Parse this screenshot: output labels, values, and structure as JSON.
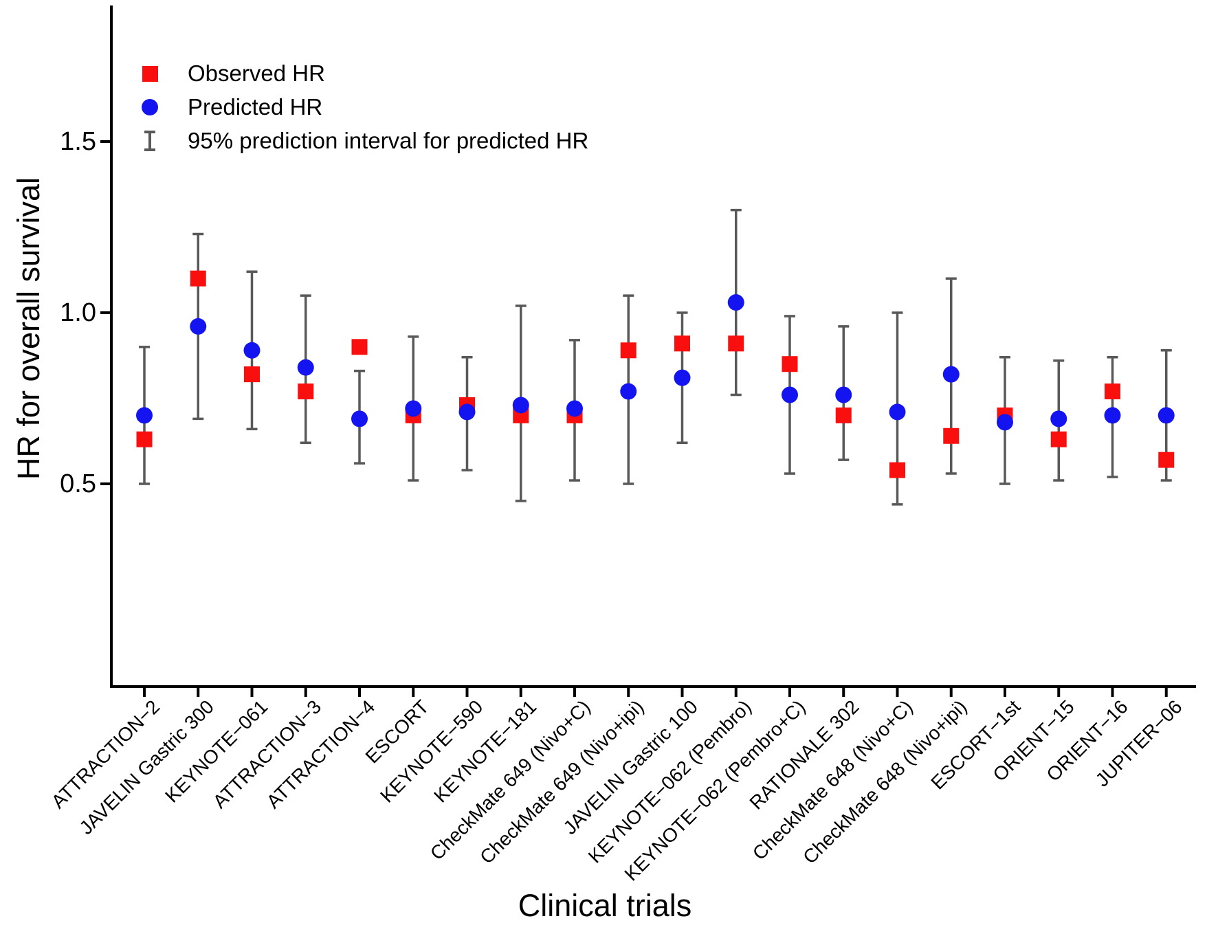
{
  "figure": {
    "y_axis_title": "HR for overall survival",
    "x_axis_title": "Clinical trials"
  },
  "legend": {
    "observed_label": "Observed HR",
    "predicted_label": "Predicted HR",
    "interval_label": "95% prediction interval for predicted HR"
  },
  "colors": {
    "observed": "#fa0f0f",
    "predicted": "#1414f0",
    "interval": "#595959",
    "axis": "#000000"
  },
  "chart_data": {
    "type": "scatter",
    "title": "",
    "xlabel": "Clinical trials",
    "ylabel": "HR for overall survival",
    "ylim": [
      -0.09,
      1.9
    ],
    "y_ticks": [
      0.5,
      1.0,
      1.5
    ],
    "grid": false,
    "legend_position": "top-left",
    "categories": [
      "ATTRACTION−2",
      "JAVELIN Gastric 300",
      "KEYNOTE−061",
      "ATTRACTION−3",
      "ATTRACTION−4",
      "ESCORT",
      "KEYNOTE−590",
      "KEYNOTE−181",
      "CheckMate 649 (Nivo+C)",
      "CheckMate 649 (Nivo+ipi)",
      "JAVELIN Gastric 100",
      "KEYNOTE−062 (Pembro)",
      "KEYNOTE−062 (Pembro+C)",
      "RATIONALE 302",
      "CheckMate 648 (Nivo+C)",
      "CheckMate 648 (Nivo+ipi)",
      "ESCORT−1st",
      "ORIENT−15",
      "ORIENT−16",
      "JUPITER−06"
    ],
    "series": [
      {
        "name": "Observed HR",
        "marker": "square",
        "values": [
          0.63,
          1.1,
          0.82,
          0.77,
          0.9,
          0.7,
          0.73,
          0.7,
          0.7,
          0.89,
          0.91,
          0.91,
          0.85,
          0.7,
          0.54,
          0.64,
          0.7,
          0.63,
          0.77,
          0.57
        ]
      },
      {
        "name": "Predicted HR",
        "marker": "circle",
        "values": [
          0.7,
          0.96,
          0.89,
          0.84,
          0.69,
          0.72,
          0.71,
          0.73,
          0.72,
          0.77,
          0.81,
          1.03,
          0.76,
          0.76,
          0.71,
          0.82,
          0.68,
          0.69,
          0.7,
          0.7
        ]
      },
      {
        "name": "95% prediction interval for predicted HR",
        "marker": "errorbar",
        "low": [
          0.5,
          0.69,
          0.66,
          0.62,
          0.56,
          0.51,
          0.54,
          0.45,
          0.51,
          0.5,
          0.62,
          0.76,
          0.53,
          0.57,
          0.44,
          0.53,
          0.5,
          0.51,
          0.52,
          0.51
        ],
        "high": [
          0.9,
          1.23,
          1.12,
          1.05,
          0.83,
          0.93,
          0.87,
          1.02,
          0.92,
          1.05,
          1.0,
          1.3,
          0.99,
          0.96,
          1.0,
          1.1,
          0.87,
          0.86,
          0.87,
          0.89
        ]
      }
    ]
  }
}
